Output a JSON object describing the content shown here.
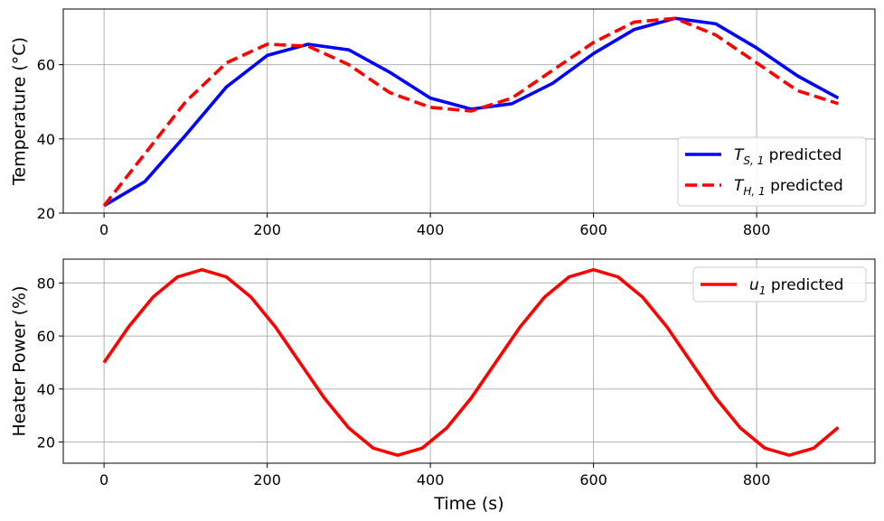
{
  "chart_data": [
    {
      "type": "line",
      "xlabel": "",
      "ylabel": "Temperature (°C)",
      "xlim": [
        -50,
        945
      ],
      "ylim": [
        20,
        75
      ],
      "xticks": [
        0,
        200,
        400,
        600,
        800
      ],
      "yticks": [
        20,
        40,
        60
      ],
      "grid": true,
      "legend_position": "lower-right",
      "x": [
        0,
        50,
        100,
        150,
        200,
        250,
        300,
        350,
        400,
        450,
        500,
        550,
        600,
        650,
        700,
        750,
        800,
        850,
        900
      ],
      "series": [
        {
          "name_prefix": "T",
          "name_sub": "S, 1",
          "name_suffix": " predicted",
          "color": "#0000ff",
          "style": "solid",
          "values": [
            22.0,
            28.5,
            41.0,
            54.0,
            62.5,
            65.5,
            64.0,
            58.0,
            51.0,
            48.0,
            49.5,
            55.0,
            63.0,
            69.5,
            72.5,
            71.0,
            64.5,
            57.0,
            51.0
          ]
        },
        {
          "name_prefix": "T",
          "name_sub": "H, 1",
          "name_suffix": " predicted",
          "color": "#ff0000",
          "style": "dashed",
          "values": [
            22.0,
            36.0,
            50.0,
            60.5,
            65.5,
            65.0,
            60.0,
            52.5,
            48.5,
            47.5,
            51.0,
            58.5,
            66.0,
            71.5,
            72.5,
            68.0,
            60.5,
            53.0,
            49.5
          ]
        }
      ]
    },
    {
      "type": "line",
      "xlabel": "Time (s)",
      "ylabel": "Heater Power (%)",
      "xlim": [
        -50,
        945
      ],
      "ylim": [
        12,
        89
      ],
      "xticks": [
        0,
        200,
        400,
        600,
        800
      ],
      "yticks": [
        20,
        40,
        60,
        80
      ],
      "grid": true,
      "legend_position": "upper-right",
      "x": [
        0,
        30,
        60,
        90,
        120,
        150,
        180,
        210,
        240,
        270,
        300,
        330,
        360,
        390,
        420,
        450,
        480,
        510,
        540,
        570,
        600,
        630,
        660,
        690,
        720,
        750,
        780,
        810,
        840,
        870,
        900
      ],
      "series": [
        {
          "name_prefix": "u",
          "name_sub": "1",
          "name_suffix": " predicted",
          "color": "#ff0000",
          "style": "solid",
          "values": [
            50.0,
            63.4,
            74.7,
            82.3,
            85.0,
            82.3,
            74.7,
            63.4,
            50.0,
            36.6,
            25.3,
            17.7,
            15.0,
            17.7,
            25.3,
            36.6,
            50.0,
            63.4,
            74.7,
            82.3,
            85.0,
            82.3,
            74.7,
            63.4,
            50.0,
            36.6,
            25.3,
            17.7,
            15.0,
            17.7,
            25.5
          ]
        }
      ]
    }
  ]
}
